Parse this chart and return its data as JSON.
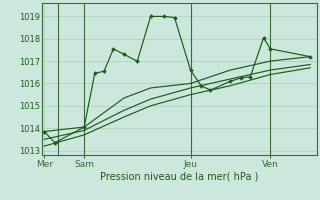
{
  "bg_color": "#cce8dc",
  "grid_color": "#aaccc0",
  "line_color": "#1a5c1a",
  "vline_color": "#3a6a3a",
  "title": "Pression niveau de la mer( hPa )",
  "xtick_labels": [
    "Mer",
    "Sam",
    "Jeu",
    "Ven"
  ],
  "xtick_positions": [
    0,
    3,
    11,
    17
  ],
  "xlim": [
    -0.2,
    20.5
  ],
  "ylim": [
    1012.8,
    1019.6
  ],
  "yticks": [
    1013,
    1014,
    1015,
    1016,
    1017,
    1018,
    1019
  ],
  "vline_positions": [
    1,
    3,
    11,
    17
  ],
  "series1_x": [
    0,
    0.8,
    3,
    3.8,
    4.5,
    5.2,
    6,
    7,
    8,
    9,
    9.8,
    11,
    11.8,
    12.5,
    14,
    14.8,
    15.5,
    16.5,
    17,
    20
  ],
  "series1_y": [
    1013.85,
    1013.35,
    1014.05,
    1016.45,
    1016.55,
    1017.55,
    1017.3,
    1017.0,
    1019.0,
    1019.0,
    1018.95,
    1016.6,
    1015.9,
    1015.7,
    1016.1,
    1016.25,
    1016.3,
    1018.05,
    1017.55,
    1017.2
  ],
  "series2_x": [
    0,
    3,
    6,
    8,
    11,
    14,
    17,
    20
  ],
  "series2_y": [
    1013.85,
    1014.05,
    1015.35,
    1015.8,
    1016.0,
    1016.6,
    1017.0,
    1017.2
  ],
  "series3_x": [
    0,
    3,
    6,
    8,
    11,
    14,
    17,
    20
  ],
  "series3_y": [
    1013.5,
    1013.9,
    1014.8,
    1015.3,
    1015.8,
    1016.2,
    1016.6,
    1016.85
  ],
  "series4_x": [
    0,
    3,
    6,
    8,
    11,
    14,
    17,
    20
  ],
  "series4_y": [
    1013.2,
    1013.7,
    1014.5,
    1015.0,
    1015.5,
    1015.9,
    1016.4,
    1016.7
  ],
  "title_fontsize": 7,
  "ytick_fontsize": 6,
  "xtick_fontsize": 6.5
}
